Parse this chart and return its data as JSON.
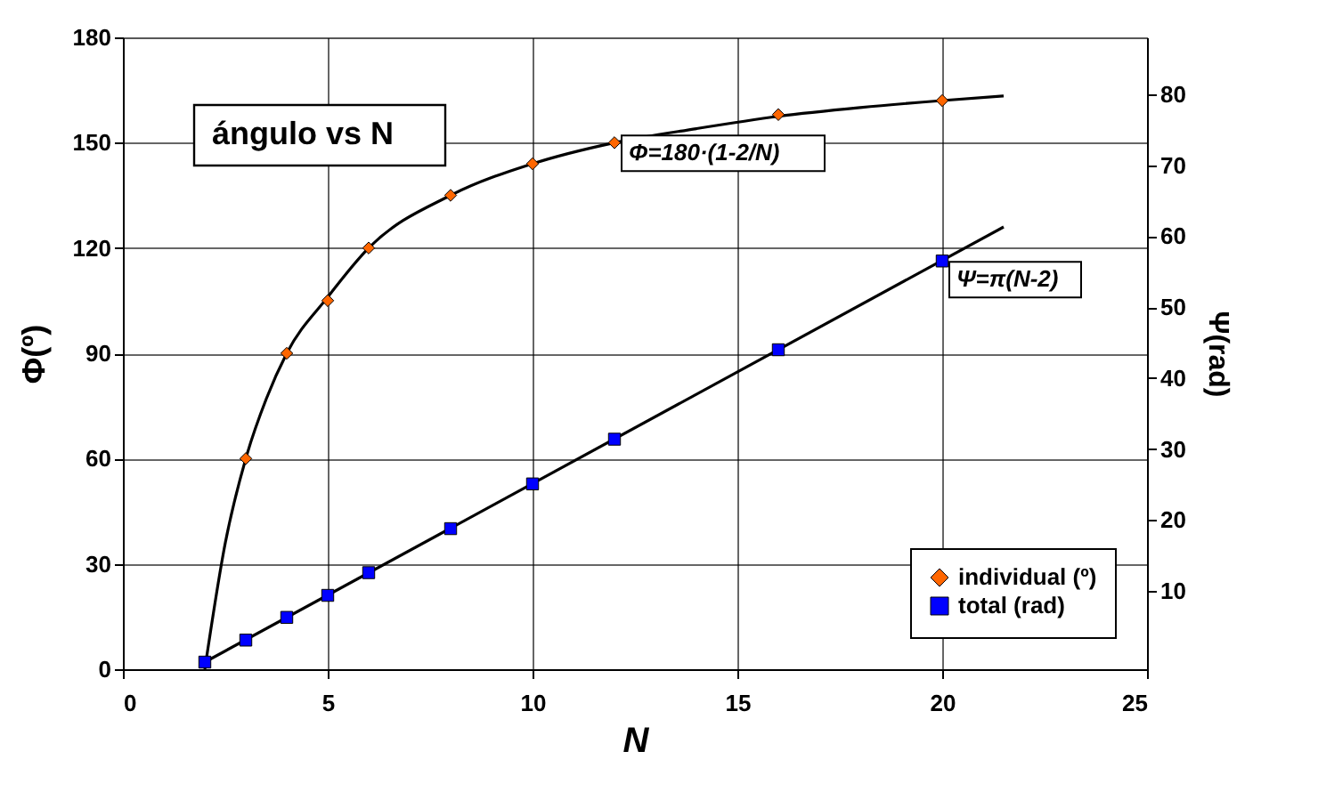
{
  "chart_data": {
    "type": "scatter",
    "title": "ángulo vs N",
    "xlabel": "N",
    "ylabel": "Φ(º)",
    "y2label": "Ψ(rad)",
    "xlim": [
      0,
      25
    ],
    "xticks": [
      0,
      5,
      10,
      15,
      20,
      25
    ],
    "ylim": [
      0,
      180
    ],
    "yticks": [
      0,
      30,
      60,
      90,
      120,
      150,
      180
    ],
    "y2lim": [
      -1,
      88
    ],
    "y2ticks": [
      10,
      20,
      30,
      40,
      50,
      60,
      70,
      80
    ],
    "grid": true,
    "legend": "bottom right",
    "line_style": "solid",
    "series": [
      {
        "type": "line",
        "color": "#000000",
        "marker": "none",
        "x": [
          2,
          2.5,
          3,
          3.5,
          4,
          5,
          6,
          8,
          10,
          12,
          14,
          16,
          18,
          20,
          21.5
        ],
        "values": [
          0,
          36,
          60,
          77,
          90,
          106,
          120,
          135,
          144,
          150,
          154,
          157.5,
          160,
          162,
          163.3
        ]
      },
      {
        "type": "line",
        "color": "#000000",
        "marker": "none",
        "axis": "y2",
        "x": [
          2,
          21.5
        ],
        "values": [
          0,
          61.3
        ]
      },
      {
        "name": "individual (º)",
        "color": "#ff6600",
        "marker": "diamond",
        "x": [
          3,
          4,
          5,
          6,
          8,
          10,
          12,
          16,
          20
        ],
        "values": [
          60,
          90,
          105,
          120,
          135,
          144,
          150,
          158,
          162
        ]
      },
      {
        "name": "total (rad)",
        "color": "#0000ff",
        "marker": "square",
        "axis": "y2",
        "x": [
          2,
          3,
          4,
          5,
          6,
          8,
          10,
          12,
          16,
          20
        ],
        "values": [
          0,
          3.1,
          6.3,
          9.4,
          12.6,
          18.8,
          25.1,
          31.4,
          44.0,
          56.5
        ]
      }
    ],
    "annotations": [
      {
        "text": "Φ=180·(1-2/N)",
        "x": 12,
        "y": 150
      },
      {
        "text": "Ψ=π(N-2)",
        "x": 20,
        "y": 114
      }
    ]
  }
}
